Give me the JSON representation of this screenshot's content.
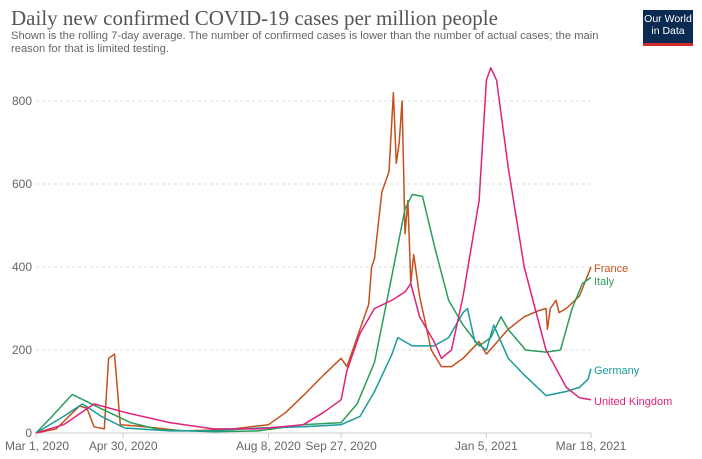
{
  "title": "Daily new confirmed COVID-19 cases per million people",
  "subtitle": "Shown is the rolling 7-day average. The number of confirmed cases is lower than the number of actual cases; the main reason for that is limited testing.",
  "logo": {
    "line1": "Our World",
    "line2": "in Data",
    "bg": "#0b2a52",
    "accent": "#d02b2b"
  },
  "chart_data": {
    "type": "line",
    "title": "Daily new confirmed COVID-19 cases per million people",
    "xlabel": "",
    "ylabel": "",
    "xlim": [
      "2020-03-01",
      "2021-03-18"
    ],
    "ylim": [
      0,
      800
    ],
    "grid": true,
    "legend": "right-end-labels",
    "x_ticks": [
      {
        "date": "2020-03-01",
        "label": "Mar 1, 2020"
      },
      {
        "date": "2020-04-30",
        "label": "Apr 30, 2020"
      },
      {
        "date": "2020-08-08",
        "label": "Aug 8, 2020"
      },
      {
        "date": "2020-09-27",
        "label": "Sep 27, 2020"
      },
      {
        "date": "2021-01-05",
        "label": "Jan 5, 2021"
      },
      {
        "date": "2021-03-18",
        "label": "Mar 18, 2021"
      }
    ],
    "y_ticks": [
      0,
      200,
      400,
      600,
      800
    ],
    "series": [
      {
        "name": "France",
        "color": "#c4501b",
        "points": [
          [
            "2020-03-01",
            0
          ],
          [
            "2020-03-15",
            10
          ],
          [
            "2020-03-25",
            45
          ],
          [
            "2020-03-31",
            65
          ],
          [
            "2020-04-05",
            60
          ],
          [
            "2020-04-10",
            15
          ],
          [
            "2020-04-17",
            10
          ],
          [
            "2020-04-20",
            180
          ],
          [
            "2020-04-24",
            190
          ],
          [
            "2020-04-28",
            20
          ],
          [
            "2020-05-15",
            15
          ],
          [
            "2020-06-10",
            5
          ],
          [
            "2020-07-10",
            8
          ],
          [
            "2020-08-08",
            20
          ],
          [
            "2020-08-20",
            50
          ],
          [
            "2020-09-01",
            90
          ],
          [
            "2020-09-15",
            140
          ],
          [
            "2020-09-27",
            180
          ],
          [
            "2020-10-01",
            160
          ],
          [
            "2020-10-10",
            250
          ],
          [
            "2020-10-16",
            310
          ],
          [
            "2020-10-18",
            400
          ],
          [
            "2020-10-20",
            420
          ],
          [
            "2020-10-25",
            580
          ],
          [
            "2020-10-30",
            630
          ],
          [
            "2020-11-02",
            820
          ],
          [
            "2020-11-04",
            650
          ],
          [
            "2020-11-06",
            700
          ],
          [
            "2020-11-08",
            800
          ],
          [
            "2020-11-10",
            480
          ],
          [
            "2020-11-12",
            560
          ],
          [
            "2020-11-14",
            360
          ],
          [
            "2020-11-16",
            430
          ],
          [
            "2020-11-20",
            330
          ],
          [
            "2020-11-28",
            200
          ],
          [
            "2020-12-05",
            160
          ],
          [
            "2020-12-12",
            160
          ],
          [
            "2020-12-20",
            180
          ],
          [
            "2020-12-31",
            220
          ],
          [
            "2021-01-05",
            190
          ],
          [
            "2021-01-10",
            210
          ],
          [
            "2021-01-20",
            250
          ],
          [
            "2021-01-31",
            280
          ],
          [
            "2021-02-10",
            295
          ],
          [
            "2021-02-15",
            300
          ],
          [
            "2021-02-16",
            250
          ],
          [
            "2021-02-18",
            300
          ],
          [
            "2021-02-22",
            320
          ],
          [
            "2021-02-24",
            290
          ],
          [
            "2021-03-01",
            300
          ],
          [
            "2021-03-10",
            330
          ],
          [
            "2021-03-18",
            400
          ]
        ]
      },
      {
        "name": "Italy",
        "color": "#2a9d5b",
        "points": [
          [
            "2020-03-01",
            0
          ],
          [
            "2020-03-12",
            40
          ],
          [
            "2020-03-26",
            93
          ],
          [
            "2020-04-14",
            60
          ],
          [
            "2020-05-05",
            25
          ],
          [
            "2020-05-25",
            8
          ],
          [
            "2020-07-01",
            3
          ],
          [
            "2020-08-01",
            5
          ],
          [
            "2020-08-31",
            20
          ],
          [
            "2020-09-27",
            25
          ],
          [
            "2020-10-08",
            70
          ],
          [
            "2020-10-20",
            170
          ],
          [
            "2020-11-01",
            380
          ],
          [
            "2020-11-10",
            540
          ],
          [
            "2020-11-15",
            575
          ],
          [
            "2020-11-22",
            570
          ],
          [
            "2020-12-01",
            440
          ],
          [
            "2020-12-10",
            320
          ],
          [
            "2020-12-20",
            260
          ],
          [
            "2020-12-31",
            210
          ],
          [
            "2021-01-08",
            230
          ],
          [
            "2021-01-15",
            280
          ],
          [
            "2021-01-20",
            250
          ],
          [
            "2021-02-01",
            200
          ],
          [
            "2021-02-15",
            195
          ],
          [
            "2021-02-25",
            200
          ],
          [
            "2021-03-05",
            300
          ],
          [
            "2021-03-12",
            360
          ],
          [
            "2021-03-18",
            375
          ]
        ]
      },
      {
        "name": "Germany",
        "color": "#1a9b9b",
        "points": [
          [
            "2020-03-01",
            0
          ],
          [
            "2020-03-20",
            40
          ],
          [
            "2020-04-02",
            70
          ],
          [
            "2020-04-15",
            40
          ],
          [
            "2020-05-01",
            12
          ],
          [
            "2020-06-01",
            5
          ],
          [
            "2020-07-01",
            5
          ],
          [
            "2020-08-01",
            12
          ],
          [
            "2020-09-01",
            15
          ],
          [
            "2020-09-27",
            20
          ],
          [
            "2020-10-10",
            40
          ],
          [
            "2020-10-20",
            100
          ],
          [
            "2020-11-01",
            190
          ],
          [
            "2020-11-05",
            230
          ],
          [
            "2020-11-15",
            210
          ],
          [
            "2020-11-30",
            210
          ],
          [
            "2020-12-10",
            230
          ],
          [
            "2020-12-20",
            290
          ],
          [
            "2020-12-23",
            300
          ],
          [
            "2020-12-28",
            220
          ],
          [
            "2021-01-05",
            200
          ],
          [
            "2021-01-10",
            260
          ],
          [
            "2021-01-20",
            180
          ],
          [
            "2021-01-31",
            140
          ],
          [
            "2021-02-15",
            90
          ],
          [
            "2021-03-01",
            100
          ],
          [
            "2021-03-10",
            110
          ],
          [
            "2021-03-16",
            130
          ],
          [
            "2021-03-18",
            155
          ]
        ]
      },
      {
        "name": "United Kingdom",
        "color": "#e0237a",
        "points": [
          [
            "2020-03-01",
            0
          ],
          [
            "2020-03-20",
            20
          ],
          [
            "2020-04-10",
            70
          ],
          [
            "2020-05-01",
            50
          ],
          [
            "2020-06-01",
            25
          ],
          [
            "2020-07-01",
            10
          ],
          [
            "2020-08-01",
            10
          ],
          [
            "2020-09-01",
            20
          ],
          [
            "2020-09-15",
            50
          ],
          [
            "2020-09-27",
            80
          ],
          [
            "2020-10-01",
            150
          ],
          [
            "2020-10-10",
            240
          ],
          [
            "2020-10-20",
            300
          ],
          [
            "2020-11-01",
            320
          ],
          [
            "2020-11-10",
            340
          ],
          [
            "2020-11-14",
            360
          ],
          [
            "2020-11-20",
            280
          ],
          [
            "2020-11-30",
            220
          ],
          [
            "2020-12-05",
            180
          ],
          [
            "2020-12-12",
            200
          ],
          [
            "2020-12-20",
            330
          ],
          [
            "2020-12-31",
            560
          ],
          [
            "2021-01-05",
            850
          ],
          [
            "2021-01-08",
            880
          ],
          [
            "2021-01-12",
            850
          ],
          [
            "2021-01-20",
            640
          ],
          [
            "2021-01-31",
            400
          ],
          [
            "2021-02-15",
            200
          ],
          [
            "2021-03-01",
            110
          ],
          [
            "2021-03-10",
            85
          ],
          [
            "2021-03-18",
            80
          ]
        ]
      }
    ]
  }
}
